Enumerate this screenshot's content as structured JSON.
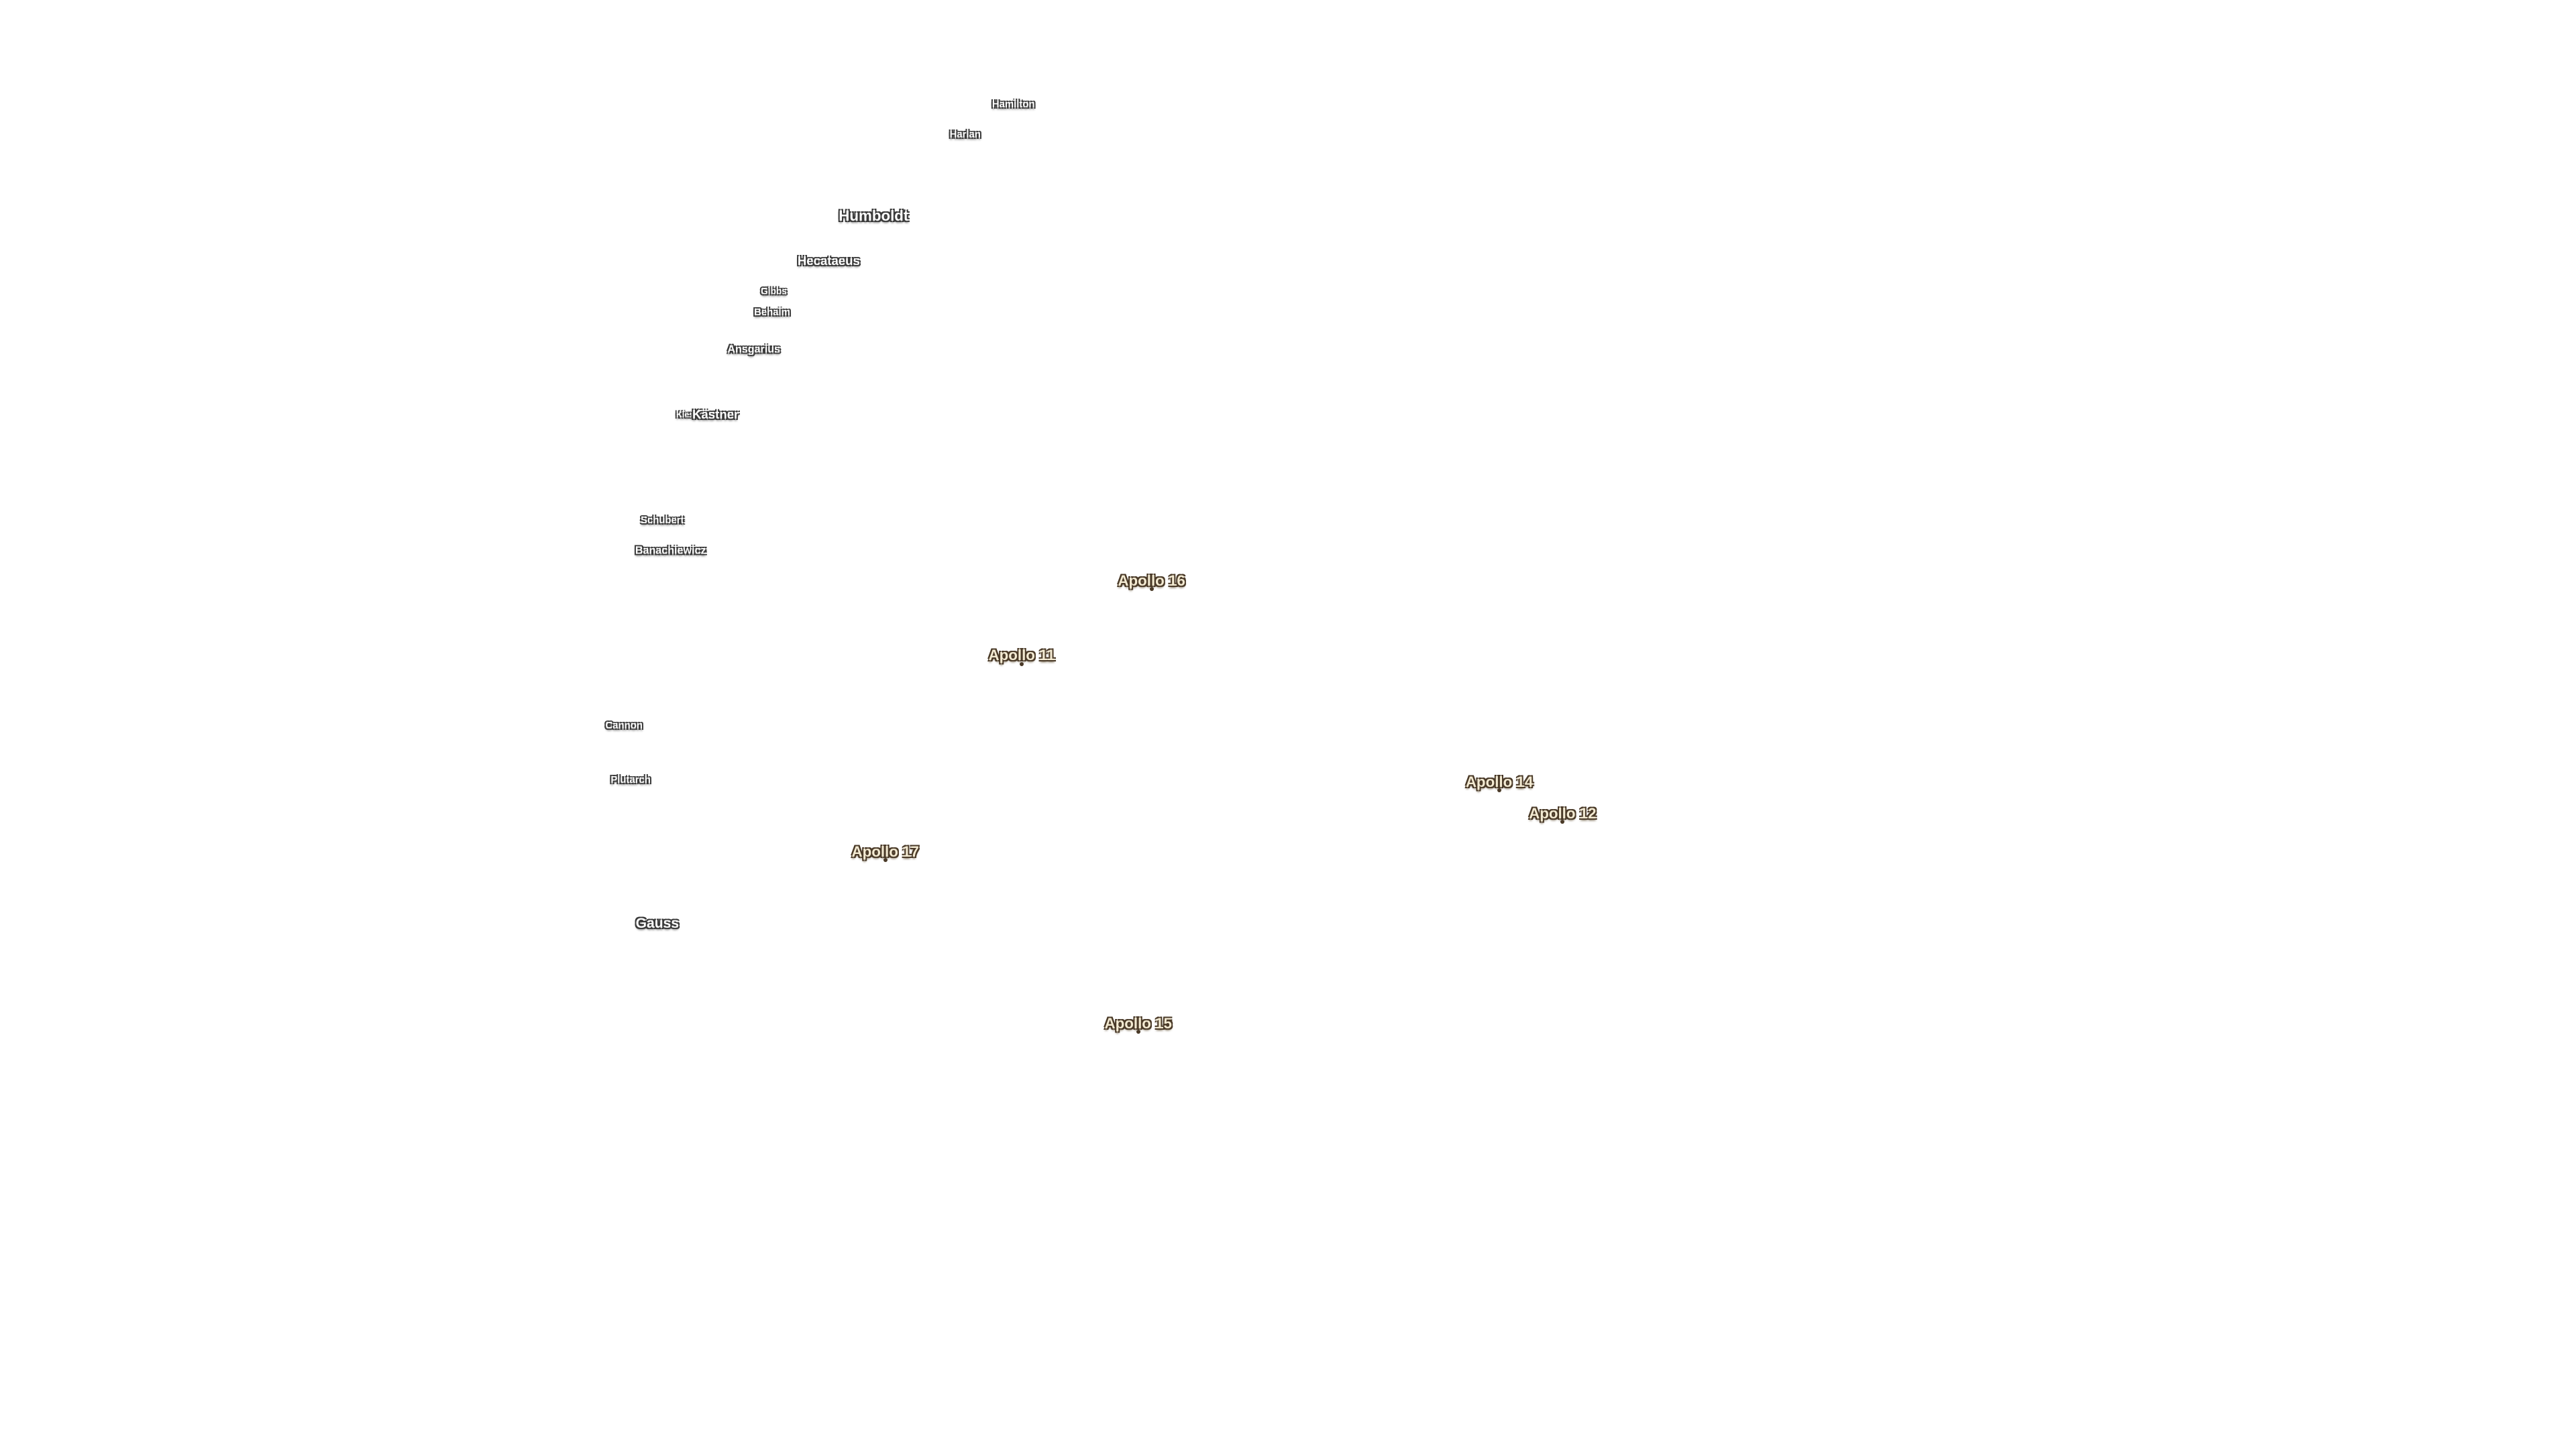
{
  "craters": [
    "Hamilton",
    "Harlan",
    "Humboldt",
    "Hecataeus",
    "Gibbs",
    "Behaim",
    "Ansgarius",
    "Kiess",
    "Kästner",
    "Schubert",
    "Banachiewicz",
    "Cannon",
    "Plutarch",
    "Gauss"
  ],
  "landing_sites": [
    "Apollo 16",
    "Apollo 11",
    "Apollo 14",
    "Apollo 12",
    "Apollo 17",
    "Apollo 15"
  ]
}
